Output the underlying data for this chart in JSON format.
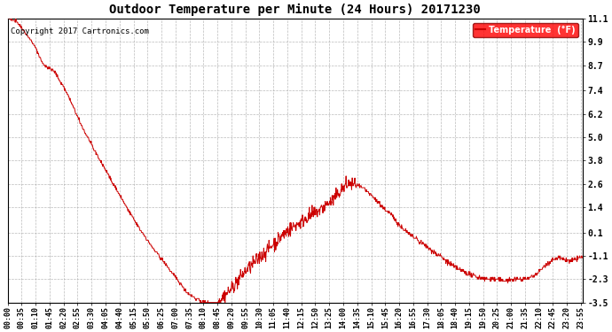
{
  "title": "Outdoor Temperature per Minute (24 Hours) 20171230",
  "copyright_text": "Copyright 2017 Cartronics.com",
  "legend_label": "Temperature  (°F)",
  "line_color": "#cc0000",
  "background_color": "#ffffff",
  "grid_color": "#aaaaaa",
  "yticks": [
    11.1,
    9.9,
    8.7,
    7.4,
    6.2,
    5.0,
    3.8,
    2.6,
    1.4,
    0.1,
    -1.1,
    -2.3,
    -3.5
  ],
  "ylim": [
    -3.5,
    11.1
  ],
  "total_minutes": 1440,
  "xtick_interval": 35,
  "xtick_labels": [
    "00:00",
    "00:35",
    "01:10",
    "01:45",
    "02:20",
    "02:55",
    "03:30",
    "04:05",
    "04:40",
    "05:15",
    "05:50",
    "06:25",
    "07:00",
    "07:35",
    "08:10",
    "08:45",
    "09:20",
    "09:55",
    "10:30",
    "11:05",
    "11:40",
    "12:15",
    "12:50",
    "13:25",
    "14:00",
    "14:35",
    "15:10",
    "15:45",
    "16:20",
    "16:55",
    "17:30",
    "18:05",
    "18:40",
    "19:15",
    "19:50",
    "20:25",
    "21:00",
    "21:35",
    "22:10",
    "22:45",
    "23:20",
    "23:55"
  ],
  "figsize": [
    6.9,
    3.75
  ],
  "dpi": 100
}
